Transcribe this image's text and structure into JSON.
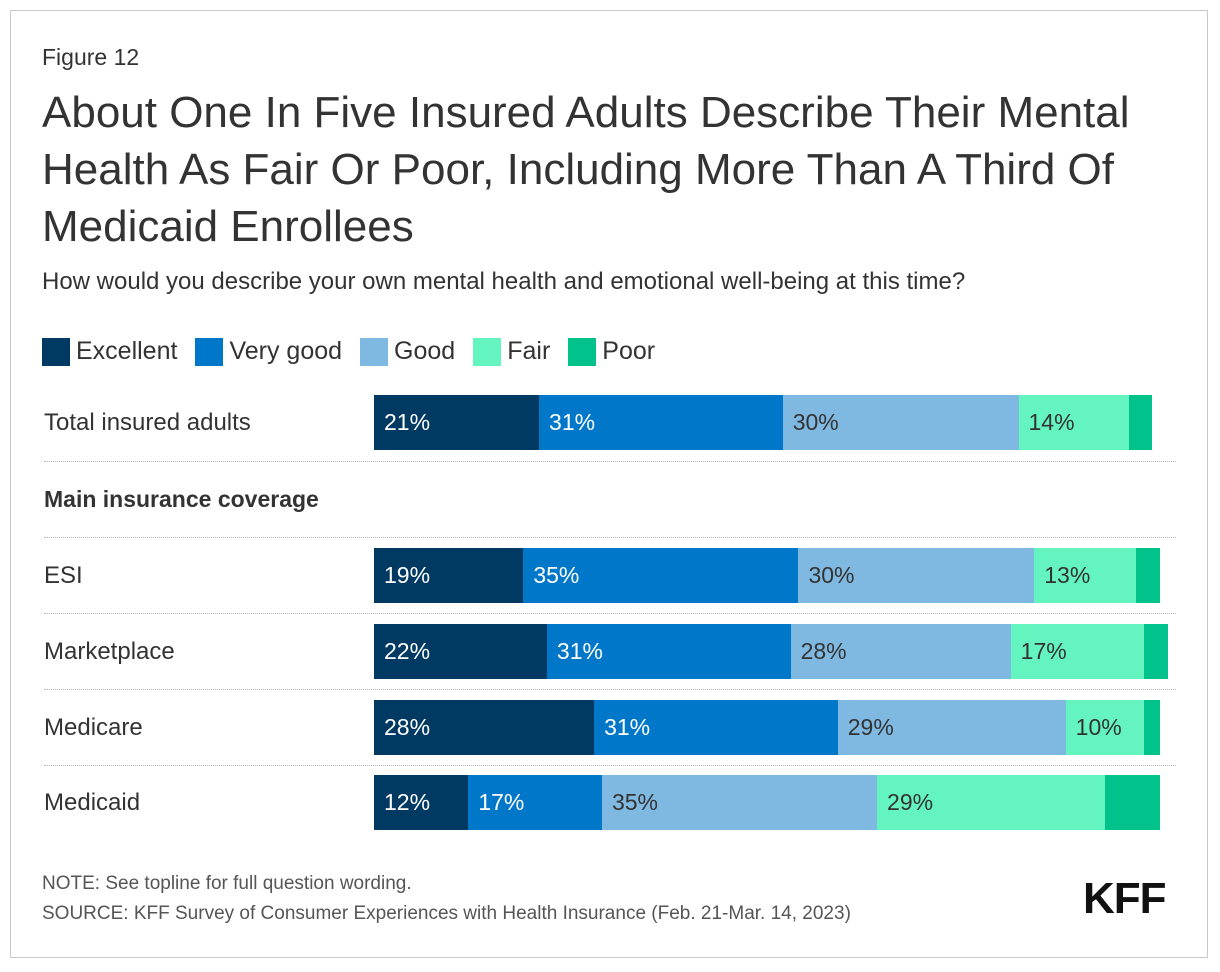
{
  "figure_label": "Figure 12",
  "title": "About One In Five Insured Adults Describe Their Mental Health As Fair Or Poor, Including More Than A Third Of Medicaid Enrollees",
  "subtitle": "How would you describe your own mental health and emotional well-being at this time?",
  "colors": {
    "Excellent": "#003a63",
    "Very good": "#0077c8",
    "Good": "#7fb8e1",
    "Fair": "#64f4c0",
    "Poor": "#00c28a"
  },
  "chart_data": {
    "type": "bar",
    "orientation": "horizontal",
    "stacked": true,
    "legend_position": "top-left",
    "grid": false,
    "series_names": [
      "Excellent",
      "Very good",
      "Good",
      "Fair",
      "Poor"
    ],
    "section_label": "Main insurance coverage",
    "rows": [
      {
        "label": "Total insured adults",
        "values": [
          21,
          31,
          30,
          14,
          3
        ],
        "labels": [
          "21%",
          "31%",
          "30%",
          "14%",
          ""
        ]
      },
      {
        "label": "ESI",
        "values": [
          19,
          35,
          30,
          13,
          3
        ],
        "labels": [
          "19%",
          "35%",
          "30%",
          "13%",
          ""
        ]
      },
      {
        "label": "Marketplace",
        "values": [
          22,
          31,
          28,
          17,
          3
        ],
        "labels": [
          "22%",
          "31%",
          "28%",
          "17%",
          ""
        ]
      },
      {
        "label": "Medicare",
        "values": [
          28,
          31,
          29,
          10,
          2
        ],
        "labels": [
          "28%",
          "31%",
          "29%",
          "10%",
          ""
        ]
      },
      {
        "label": "Medicaid",
        "values": [
          12,
          17,
          35,
          29,
          7
        ],
        "labels": [
          "12%",
          "17%",
          "35%",
          "29%",
          ""
        ]
      }
    ]
  },
  "note": "NOTE: See topline for full question wording.",
  "source": "SOURCE: KFF Survey of Consumer Experiences with Health Insurance (Feb. 21-Mar. 14, 2023)",
  "logo_text": "KFF"
}
